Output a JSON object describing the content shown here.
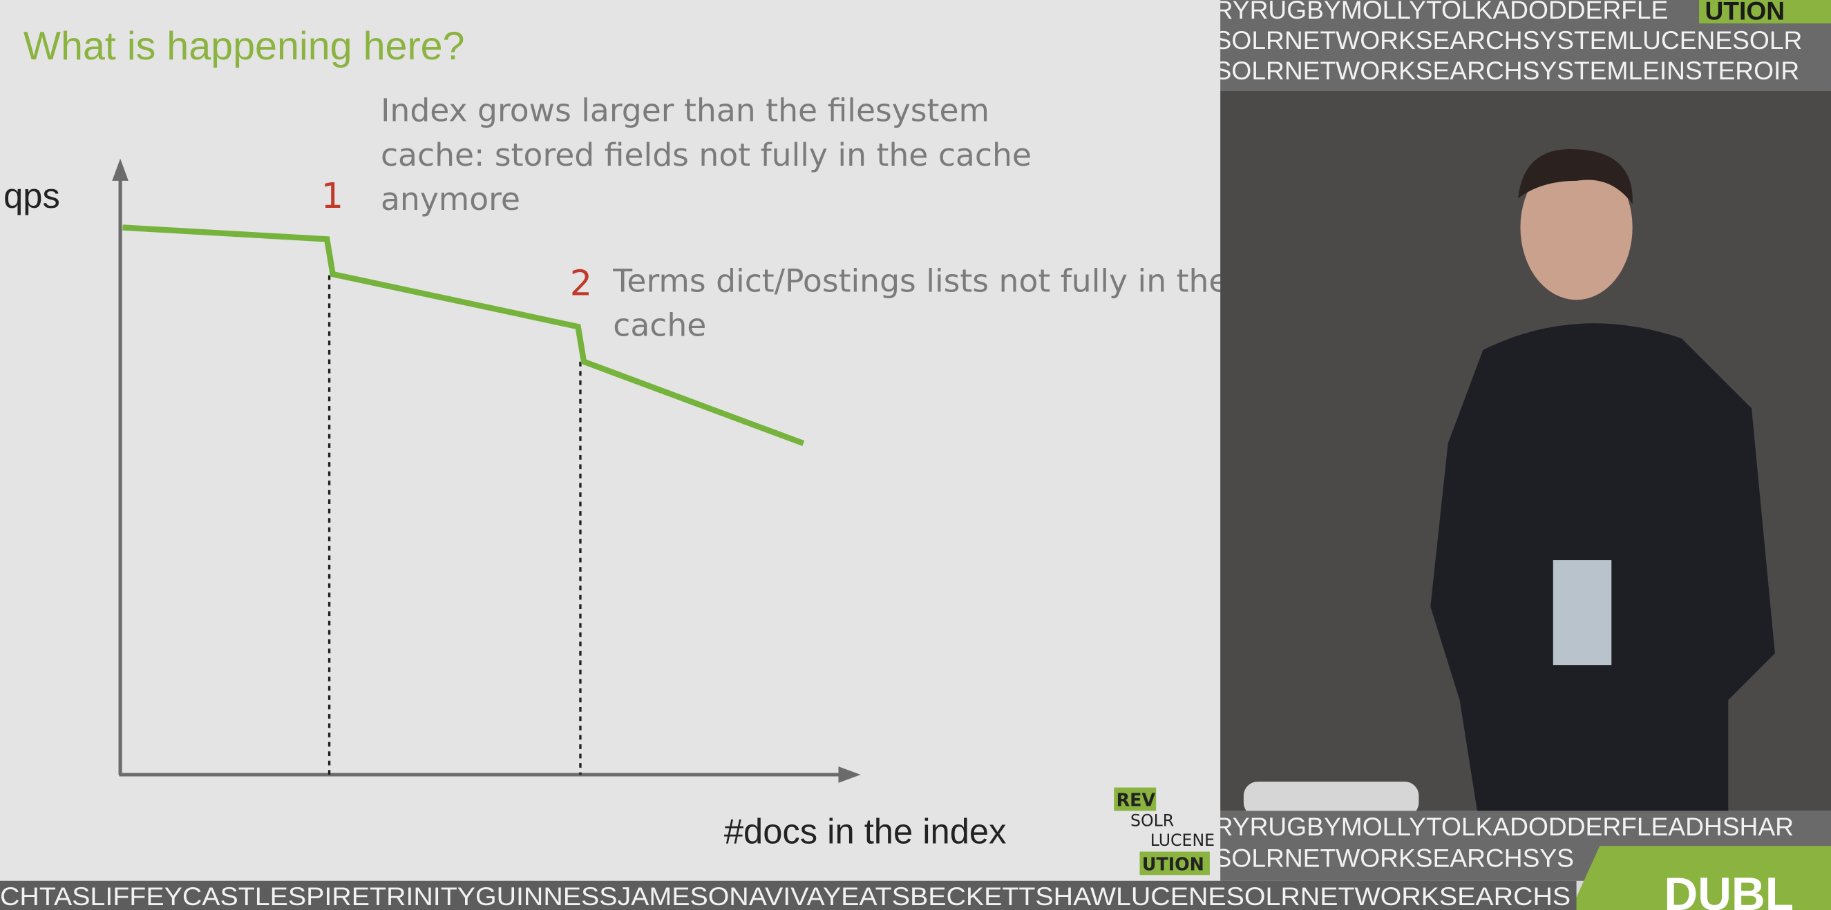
{
  "slide": {
    "title": "What is happening here?",
    "y_axis_label": "qps",
    "x_axis_label": "#docs in the index",
    "markers": [
      {
        "number": "1",
        "note": [
          "Index grows larger than the filesystem",
          "cache: stored fields not fully in the cache",
          "anymore"
        ]
      },
      {
        "number": "2",
        "note": [
          "Terms dict/Postings lists not fully in the",
          "cache"
        ]
      }
    ],
    "logo": [
      "REV",
      "SOLR",
      "LUCENE",
      "UTION"
    ]
  },
  "banner": {
    "top": [
      "RYRUGBYMOLLYTOLKADODDERFLE",
      "SOLRNETWORKSEARCHSYSTEMLUCENESOLR",
      "SOLRNETWORKSEARCHSYSTEMLEINSTEROIR"
    ],
    "top_logo": "UTION",
    "bottom": [
      "RYRUGBYMOLLYTOLKADODDERFLEADHSHAR",
      "SOLRNETWORKSEARCHSYS",
      "CHTASLIFFEYCASTLESPIRETRINITYGUINNESSJAMESONAVIVAYEATSBECKETTSHAWLUCENESOLRNETWORKSEARCHS"
    ],
    "city": "DUBL"
  }
}
